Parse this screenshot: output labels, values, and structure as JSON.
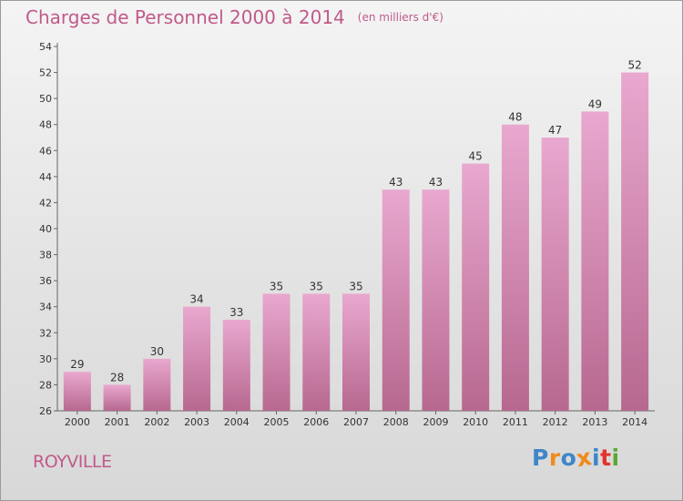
{
  "title": "Charges de Personnel 2000 à 2014",
  "subtitle": "(en milliers d'€)",
  "town": "ROYVILLE",
  "logo": {
    "text": "Proxiti",
    "colors": [
      "#3f86c8",
      "#f08a1d",
      "#3f86c8",
      "#f08a1d",
      "#3f86c8",
      "#e3332c",
      "#5aa832"
    ]
  },
  "colors": {
    "accent": "#c05a8a",
    "bar_top": "#e9a8cf",
    "bar_bottom": "#b7688f"
  },
  "chart_data": {
    "type": "bar",
    "title": "Charges de Personnel 2000 à 2014",
    "subtitle": "(en milliers d'€)",
    "categories": [
      "2000",
      "2001",
      "2002",
      "2003",
      "2004",
      "2005",
      "2006",
      "2007",
      "2008",
      "2009",
      "2010",
      "2011",
      "2012",
      "2013",
      "2014"
    ],
    "values": [
      29,
      28,
      30,
      34,
      33,
      35,
      35,
      35,
      43,
      43,
      45,
      48,
      47,
      49,
      52
    ],
    "ylim": [
      26,
      54
    ],
    "yticks": [
      26,
      28,
      30,
      32,
      34,
      36,
      38,
      40,
      42,
      44,
      46,
      48,
      50,
      52,
      54
    ],
    "grid": false,
    "legend": "none"
  }
}
